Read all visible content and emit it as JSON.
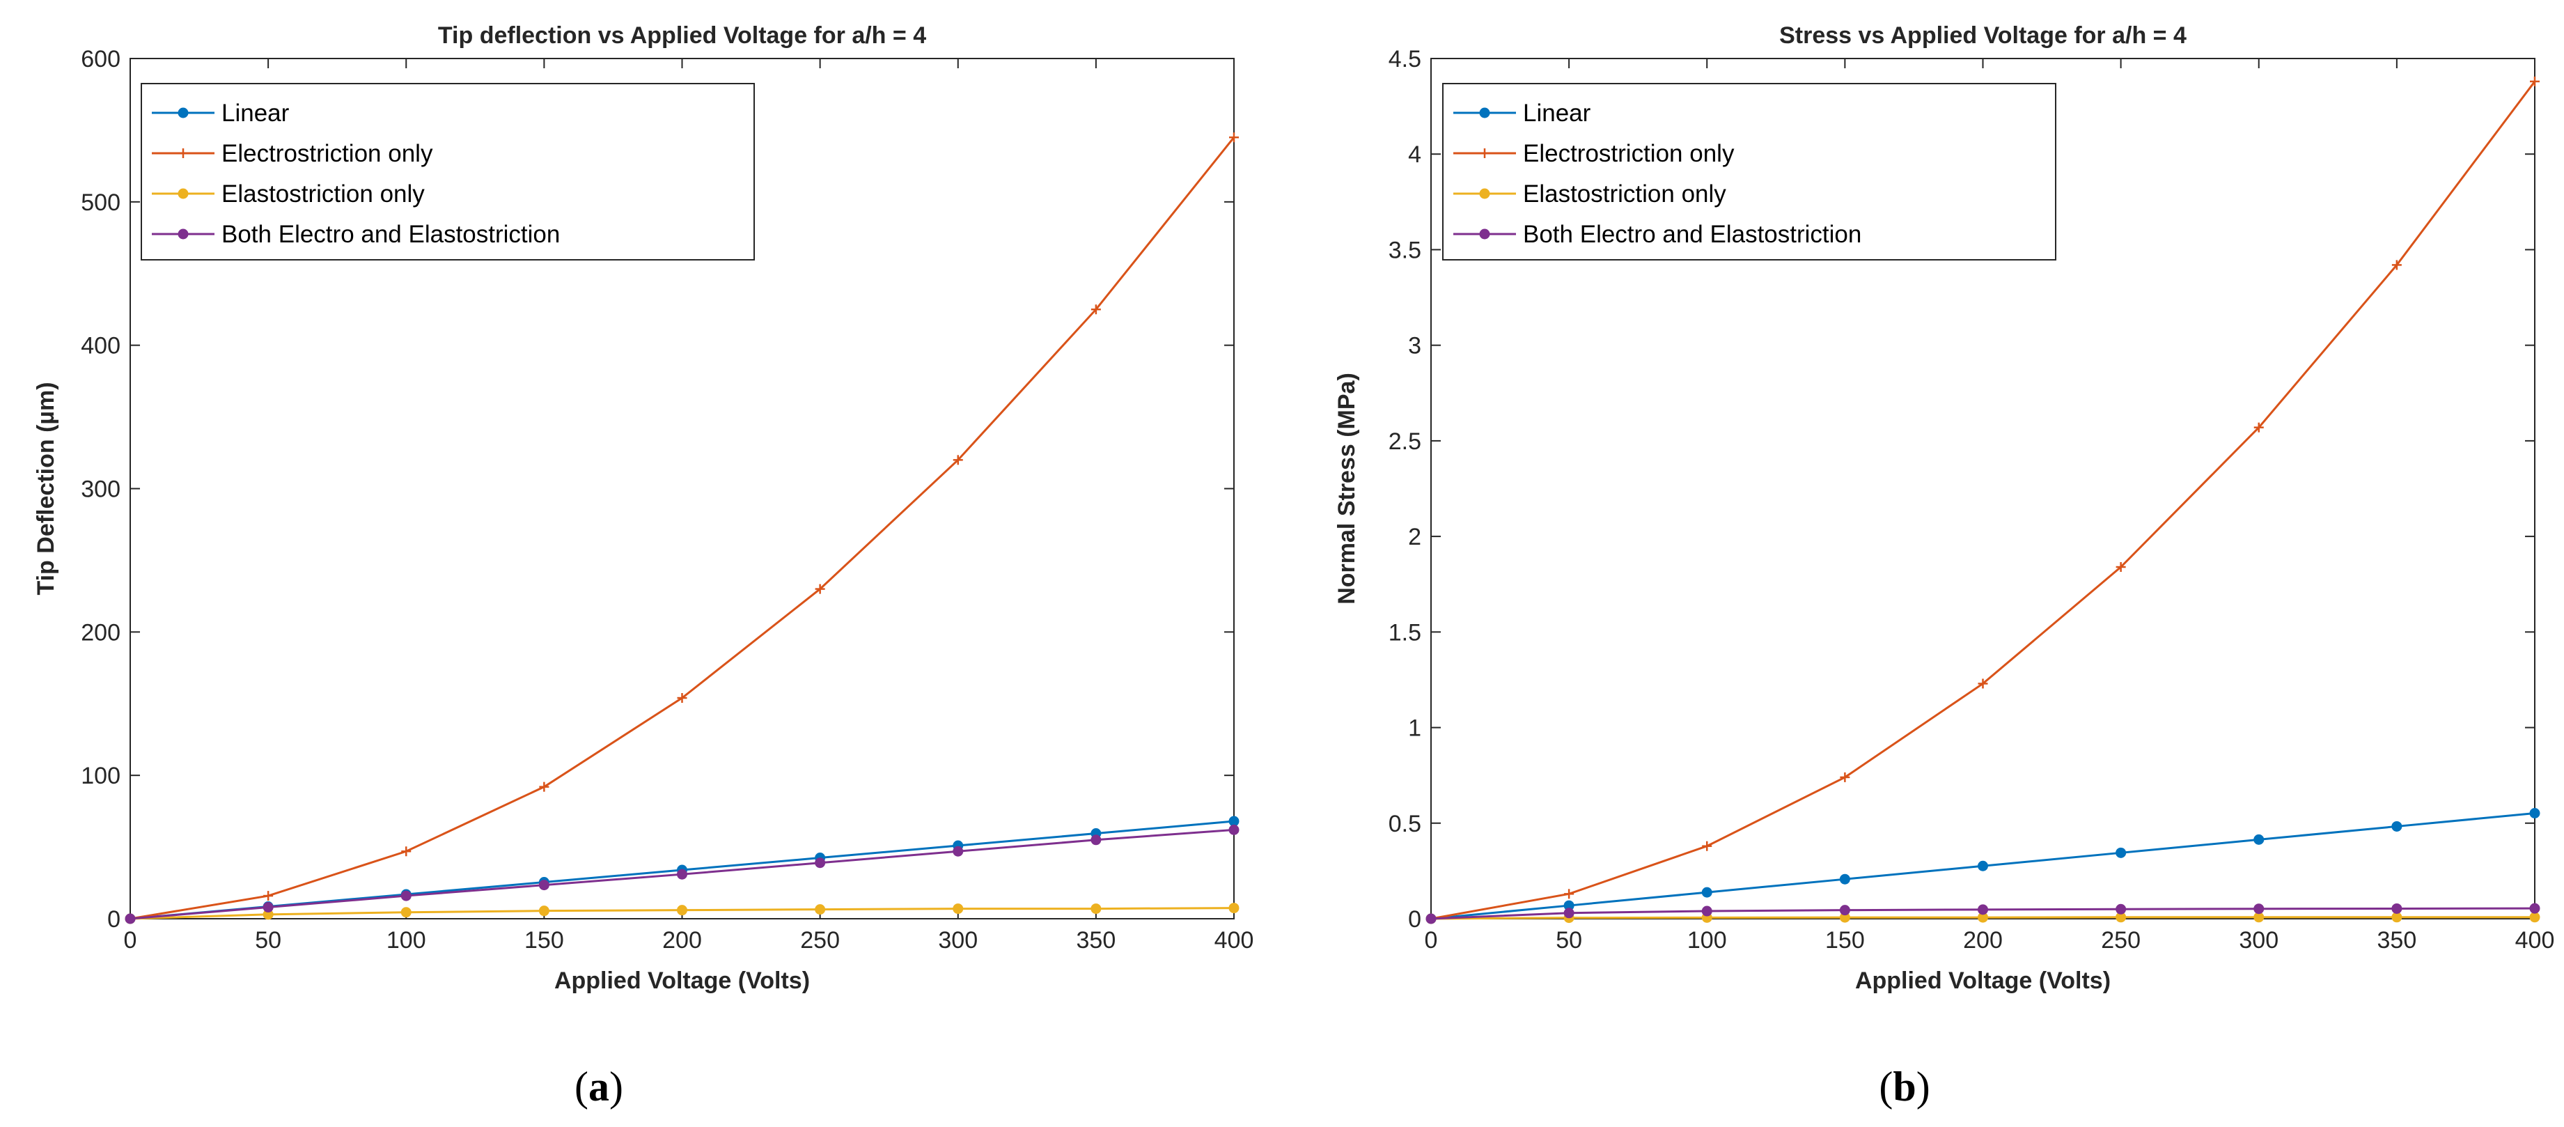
{
  "chart_data": [
    {
      "type": "line",
      "panel_caption": "(a)",
      "caption_letter": "a",
      "title": "Tip deflection vs Applied Voltage for a/h = 4",
      "xlabel": "Applied Voltage (Volts)",
      "ylabel": "Tip Deflection (µm)",
      "xlim": [
        0,
        400
      ],
      "ylim": [
        0,
        600
      ],
      "xticks": [
        0,
        50,
        100,
        150,
        200,
        250,
        300,
        350,
        400
      ],
      "yticks": [
        0,
        100,
        200,
        300,
        400,
        500,
        600
      ],
      "ytick_labels": [
        "0",
        "100",
        "200",
        "300",
        "400",
        "500",
        "600"
      ],
      "legend_position": "top-left",
      "x": [
        0,
        50,
        100,
        150,
        200,
        250,
        300,
        350,
        400
      ],
      "series": [
        {
          "name": "Linear",
          "color": "#0072BD",
          "marker": "dot",
          "values": [
            0,
            8.5,
            17,
            25.5,
            34,
            42.5,
            51,
            59.5,
            68
          ]
        },
        {
          "name": "Electrostriction only",
          "color": "#D95319",
          "marker": "plus",
          "values": [
            0,
            16,
            47,
            92,
            154,
            230,
            320,
            425,
            545
          ]
        },
        {
          "name": "Elastostriction only",
          "color": "#EDB120",
          "marker": "dot",
          "values": [
            0,
            3,
            4.5,
            5.5,
            6,
            6.5,
            7,
            7,
            7.5
          ]
        },
        {
          "name": "Both Electro and Elastostriction",
          "color": "#7E2F8E",
          "marker": "dot",
          "values": [
            0,
            8,
            16,
            23.5,
            31,
            39,
            47,
            55,
            62
          ]
        }
      ]
    },
    {
      "type": "line",
      "panel_caption": "(b)",
      "caption_letter": "b",
      "title": "Stress vs Applied Voltage for a/h = 4",
      "xlabel": "Applied Voltage (Volts)",
      "ylabel": "Normal Stress (MPa)",
      "xlim": [
        0,
        400
      ],
      "ylim": [
        0,
        4.5
      ],
      "xticks": [
        0,
        50,
        100,
        150,
        200,
        250,
        300,
        350,
        400
      ],
      "yticks": [
        0,
        0.5,
        1,
        1.5,
        2,
        2.5,
        3,
        3.5,
        4,
        4.5
      ],
      "ytick_labels": [
        "0",
        "0.5",
        "1",
        "1.5",
        "2",
        "2.5",
        "3",
        "3.5",
        "4",
        "4.5"
      ],
      "legend_position": "top-left",
      "x": [
        0,
        50,
        100,
        150,
        200,
        250,
        300,
        350,
        400
      ],
      "series": [
        {
          "name": "Linear",
          "color": "#0072BD",
          "marker": "dot",
          "values": [
            0,
            0.069,
            0.138,
            0.207,
            0.276,
            0.345,
            0.414,
            0.483,
            0.552
          ]
        },
        {
          "name": "Electrostriction only",
          "color": "#D95319",
          "marker": "plus",
          "values": [
            0,
            0.13,
            0.38,
            0.74,
            1.23,
            1.84,
            2.57,
            3.42,
            4.38
          ]
        },
        {
          "name": "Elastostriction only",
          "color": "#EDB120",
          "marker": "dot",
          "values": [
            0,
            0.005,
            0.006,
            0.007,
            0.007,
            0.008,
            0.008,
            0.008,
            0.008
          ]
        },
        {
          "name": "Both Electro and Elastostriction",
          "color": "#7E2F8E",
          "marker": "dot",
          "values": [
            0,
            0.03,
            0.04,
            0.045,
            0.048,
            0.05,
            0.052,
            0.053,
            0.054
          ]
        }
      ]
    }
  ]
}
